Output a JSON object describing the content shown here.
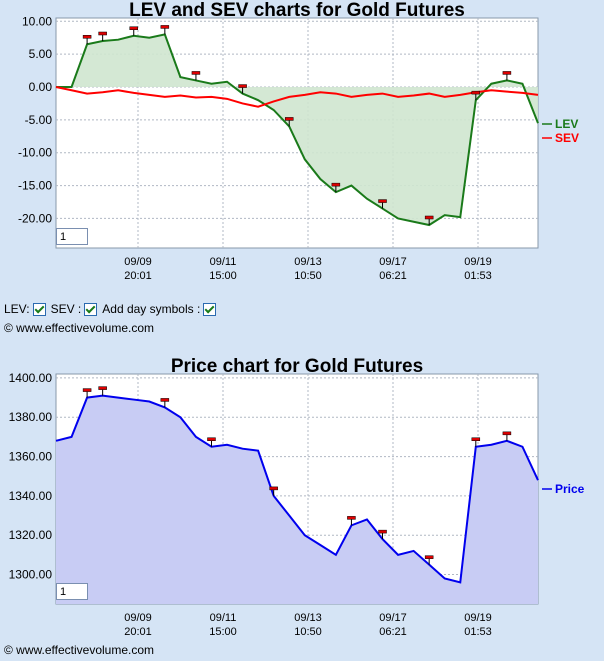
{
  "chart_data": [
    {
      "type": "area",
      "title": "LEV and SEV charts for Gold Futures",
      "x_ticks": [
        {
          "date": "09/09",
          "time": "20:01"
        },
        {
          "date": "09/11",
          "time": "15:00"
        },
        {
          "date": "09/13",
          "time": "10:50"
        },
        {
          "date": "09/17",
          "time": "06:21"
        },
        {
          "date": "09/19",
          "time": "01:53"
        }
      ],
      "y_ticks": [
        "10.00",
        "5.00",
        "0.00",
        "-5.00",
        "-10.00",
        "-15.00",
        "-20.00"
      ],
      "ylim": [
        -24.5,
        10.5
      ],
      "x_points": 32,
      "series": [
        {
          "name": "LEV",
          "color": "#1a7a1a",
          "values": [
            0,
            0,
            6.5,
            7.0,
            7.2,
            7.8,
            7.5,
            8.0,
            1.5,
            1.0,
            0.5,
            0.8,
            -1.0,
            -2.0,
            -3.5,
            -6.0,
            -11.0,
            -14.0,
            -16.0,
            -15.0,
            -17.0,
            -18.5,
            -20.0,
            -20.5,
            -21.0,
            -19.5,
            -19.8,
            -2.0,
            0.5,
            1.0,
            0.5,
            -5.5
          ]
        },
        {
          "name": "SEV",
          "color": "#ff0000",
          "values": [
            0,
            -0.5,
            -1.0,
            -0.8,
            -0.5,
            -0.9,
            -1.2,
            -1.5,
            -1.3,
            -1.6,
            -1.5,
            -1.8,
            -2.5,
            -3.0,
            -2.2,
            -1.5,
            -1.2,
            -0.8,
            -1.0,
            -1.5,
            -1.2,
            -1.0,
            -1.5,
            -1.3,
            -1.0,
            -1.5,
            -1.2,
            -0.8,
            -0.5,
            -0.7,
            -0.9,
            -1.2
          ]
        }
      ],
      "day_markers": [
        2,
        3,
        5,
        7,
        9,
        12,
        15,
        18,
        21,
        24,
        27,
        29
      ]
    },
    {
      "type": "area",
      "title": "Price chart for Gold Futures",
      "x_ticks": [
        {
          "date": "09/09",
          "time": "20:01"
        },
        {
          "date": "09/11",
          "time": "15:00"
        },
        {
          "date": "09/13",
          "time": "10:50"
        },
        {
          "date": "09/17",
          "time": "06:21"
        },
        {
          "date": "09/19",
          "time": "01:53"
        }
      ],
      "y_ticks": [
        "1400.00",
        "1380.00",
        "1360.00",
        "1340.00",
        "1320.00",
        "1300.00"
      ],
      "ylim": [
        1285,
        1402
      ],
      "x_points": 32,
      "series": [
        {
          "name": "Price",
          "color": "#0000ee",
          "values": [
            1368,
            1370,
            1390,
            1391,
            1390,
            1389,
            1388,
            1385,
            1380,
            1370,
            1365,
            1366,
            1364,
            1363,
            1340,
            1330,
            1320,
            1315,
            1310,
            1325,
            1328,
            1318,
            1310,
            1312,
            1305,
            1298,
            1296,
            1365,
            1366,
            1368,
            1365,
            1348
          ]
        }
      ],
      "day_markers": [
        2,
        3,
        7,
        10,
        14,
        19,
        21,
        24,
        27,
        29
      ]
    }
  ],
  "controls": {
    "lev_label": "LEV:",
    "sev_label": "SEV :",
    "day_symbols_label": "Add day symbols :",
    "zoom_value": "1"
  },
  "copyright": "© www.effectivevolume.com"
}
